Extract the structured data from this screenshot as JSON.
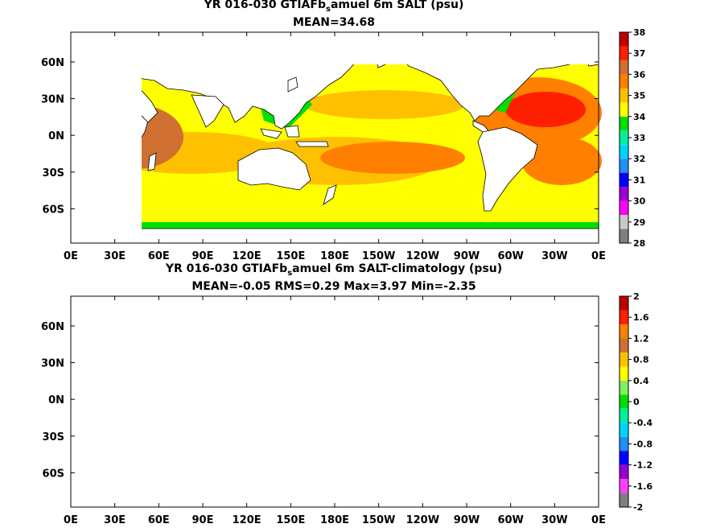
{
  "panels": [
    {
      "title_prefix": "YR 016-030 GTIAFb",
      "title_sub": "s",
      "title_suffix": "amuel 6m SALT (psu)",
      "stats": "MEAN=34.68"
    },
    {
      "title_prefix": "YR 016-030 GTIAFb",
      "title_sub": "s",
      "title_suffix": "amuel 6m SALT-climatology (psu)",
      "stats": "MEAN=-0.05   RMS=0.29   Max=3.97   Min=-2.35"
    }
  ],
  "chart_data": [
    {
      "type": "heatmap",
      "variable": "SALT",
      "units": "psu",
      "mean": 34.68,
      "x_ticks": [
        "0E",
        "30E",
        "60E",
        "90E",
        "120E",
        "150E",
        "180E",
        "150W",
        "120W",
        "90W",
        "60W",
        "30W",
        "0E"
      ],
      "y_ticks": [
        "60N",
        "30N",
        "0N",
        "30S",
        "60S"
      ],
      "colorbar": {
        "levels": [
          "28",
          "29",
          "30",
          "31",
          "32",
          "33",
          "34",
          "35",
          "36",
          "37",
          "38"
        ],
        "colors": [
          "#808080",
          "#c8c8c8",
          "#ff00ff",
          "#9b00d0",
          "#0000ff",
          "#1e90ff",
          "#00d4ff",
          "#00f0a0",
          "#00e000",
          "#ffff00",
          "#ffc000",
          "#ff8000",
          "#d07030",
          "#ff2000",
          "#c00000"
        ]
      }
    },
    {
      "type": "heatmap",
      "variable": "SALT-climatology",
      "units": "psu",
      "mean": -0.05,
      "rms": 0.29,
      "max": 3.97,
      "min": -2.35,
      "x_ticks": [
        "0E",
        "30E",
        "60E",
        "90E",
        "120E",
        "150E",
        "180E",
        "150W",
        "120W",
        "90W",
        "60W",
        "30W",
        "0E"
      ],
      "y_ticks": [
        "60N",
        "30N",
        "0N",
        "30S",
        "60S"
      ],
      "colorbar": {
        "levels": [
          "2",
          "1.6",
          "1.2",
          "0.8",
          "0.4",
          "0",
          "-0.4",
          "-0.8",
          "-1.2",
          "-1.6",
          "-2"
        ],
        "colors": [
          "#808080",
          "#ff40ff",
          "#9b00d0",
          "#0000ff",
          "#1e90ff",
          "#00d4ff",
          "#00f0a0",
          "#00e000",
          "#80f060",
          "#ffff00",
          "#ffc000",
          "#d07030",
          "#ff8000",
          "#ff2000",
          "#c00000"
        ]
      }
    }
  ]
}
